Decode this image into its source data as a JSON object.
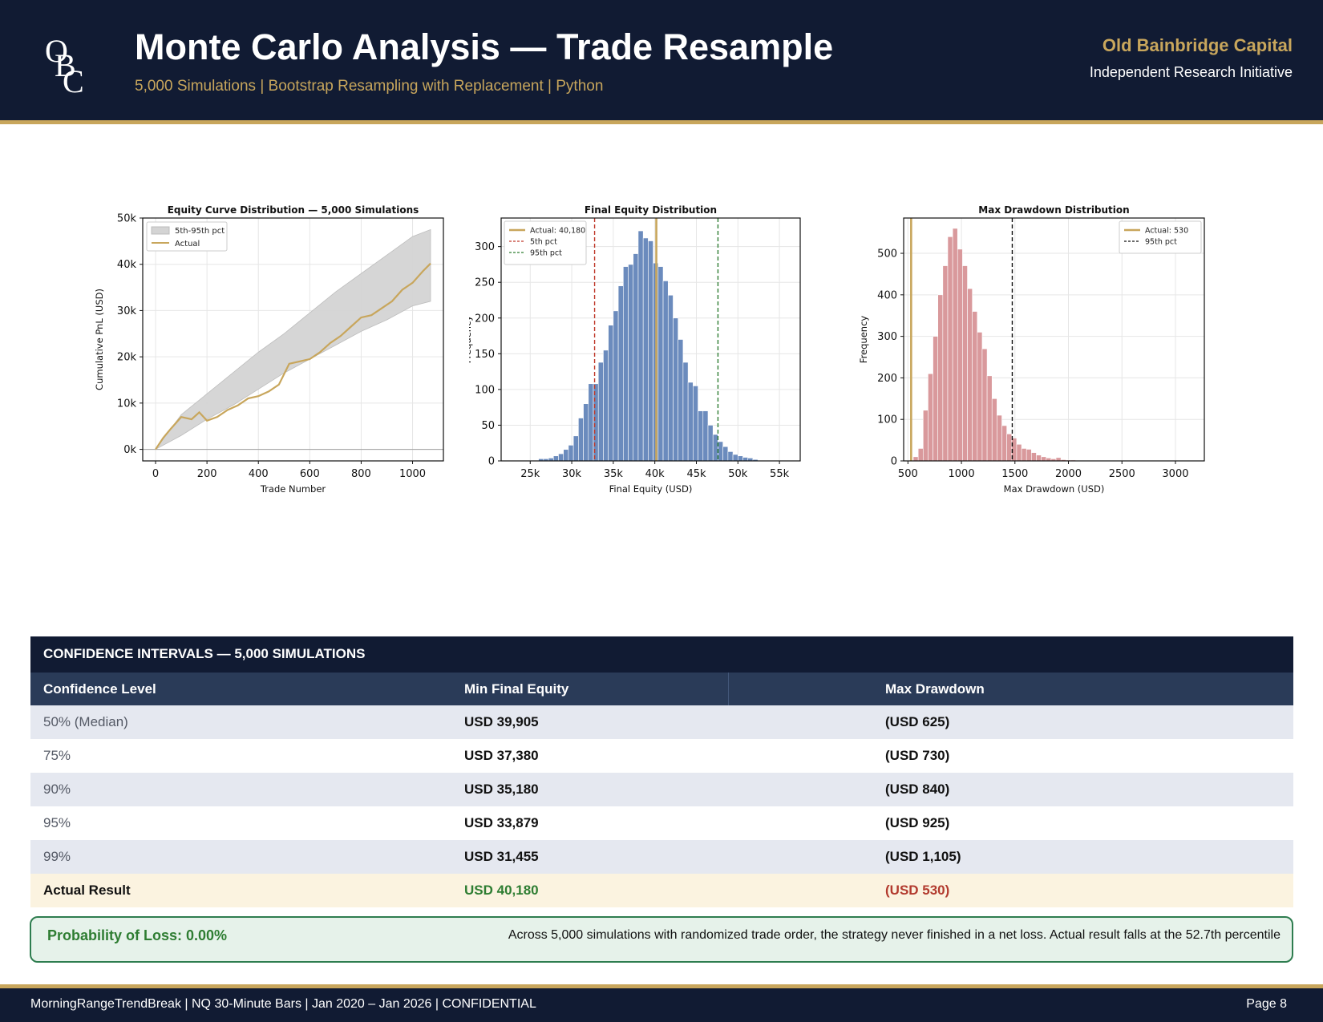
{
  "header": {
    "logo_letters": [
      "O",
      "B",
      "C"
    ],
    "title": "Monte Carlo Analysis — Trade Resample",
    "subtitle": "5,000 Simulations | Bootstrap Resampling with Replacement | Python",
    "brand": "Old Bainbridge Capital",
    "brand_sub": "Independent Research Initiative"
  },
  "colors": {
    "navy": "#111b33",
    "gold": "#c8a65c",
    "blue_bars": "#6b8bbd",
    "red_bars": "#d9999c",
    "band": "#d4d4d4",
    "green": "#2e7d32",
    "red": "#b23a2e"
  },
  "chart_data": [
    {
      "type": "area",
      "title": "Equity Curve Distribution — 5,000 Simulations",
      "xlabel": "Trade Number",
      "ylabel": "Cumulative PnL (USD)",
      "xlim": [
        -50,
        1120
      ],
      "ylim": [
        -2500,
        50000
      ],
      "xticks": [
        0,
        200,
        400,
        600,
        800,
        1000
      ],
      "xtick_labels": [
        "0",
        "200",
        "400",
        "600",
        "800",
        "1000"
      ],
      "yticks": [
        0,
        10000,
        20000,
        30000,
        40000,
        50000
      ],
      "ytick_labels": [
        "0k",
        "10k",
        "20k",
        "30k",
        "40k",
        "50k"
      ],
      "legend": [
        "5th-95th pct",
        "Actual"
      ],
      "legend_position": "upper-left",
      "band": {
        "x": [
          0,
          100,
          200,
          300,
          400,
          500,
          600,
          700,
          800,
          900,
          1000,
          1070
        ],
        "lower": [
          0,
          3000,
          6500,
          9500,
          13000,
          16500,
          19500,
          22500,
          25500,
          28000,
          31000,
          32000
        ],
        "upper": [
          0,
          7500,
          12000,
          16500,
          21000,
          25000,
          29500,
          34000,
          38000,
          42000,
          46000,
          47500
        ]
      },
      "actual": {
        "x": [
          0,
          30,
          60,
          100,
          140,
          170,
          200,
          240,
          280,
          320,
          360,
          400,
          440,
          480,
          520,
          560,
          600,
          640,
          680,
          720,
          760,
          800,
          840,
          880,
          920,
          960,
          1000,
          1040,
          1070
        ],
        "y": [
          0,
          2500,
          4500,
          7000,
          6500,
          8000,
          6200,
          7000,
          8500,
          9500,
          11000,
          11500,
          12500,
          14000,
          18500,
          19000,
          19500,
          21000,
          23000,
          24500,
          26500,
          28500,
          29000,
          30500,
          32000,
          34500,
          36000,
          38500,
          40180
        ]
      }
    },
    {
      "type": "bar",
      "title": "Final Equity Distribution",
      "xlabel": "Final Equity (USD)",
      "ylabel": "Frequency",
      "xlim": [
        21500,
        57500
      ],
      "ylim": [
        0,
        340
      ],
      "xticks": [
        25000,
        30000,
        35000,
        40000,
        45000,
        50000,
        55000
      ],
      "xtick_labels": [
        "25k",
        "30k",
        "35k",
        "40k",
        "45k",
        "50k",
        "55k"
      ],
      "yticks": [
        0,
        50,
        100,
        150,
        200,
        250,
        300
      ],
      "ytick_labels": [
        "0",
        "50",
        "100",
        "150",
        "200",
        "250",
        "300"
      ],
      "bin_start": 26000,
      "bin_width": 600,
      "values": [
        3,
        3,
        4,
        7,
        10,
        16,
        22,
        35,
        60,
        80,
        108,
        108,
        138,
        155,
        190,
        210,
        245,
        272,
        275,
        290,
        322,
        312,
        308,
        277,
        272,
        252,
        232,
        200,
        170,
        138,
        110,
        105,
        70,
        70,
        50,
        37,
        27,
        20,
        13,
        9,
        7,
        5,
        4,
        2
      ],
      "lines": [
        {
          "label": "Actual: 40,180",
          "x": 40180,
          "style": "solid",
          "color": "#c8a65c"
        },
        {
          "label": "5th pct",
          "x": 32750,
          "style": "dashed",
          "color": "#c0392b"
        },
        {
          "label": "95th pct",
          "x": 47600,
          "style": "dashed",
          "color": "#2e7d32"
        }
      ],
      "legend_position": "upper-left"
    },
    {
      "type": "bar",
      "title": "Max Drawdown Distribution",
      "xlabel": "Max Drawdown (USD)",
      "ylabel": "Frequency",
      "xlim": [
        460,
        3270
      ],
      "ylim": [
        0,
        585
      ],
      "xticks": [
        500,
        1000,
        1500,
        2000,
        2500,
        3000
      ],
      "xtick_labels": [
        "500",
        "1000",
        "1500",
        "2000",
        "2500",
        "3000"
      ],
      "yticks": [
        0,
        100,
        200,
        300,
        400,
        500
      ],
      "ytick_labels": [
        "0",
        "100",
        "200",
        "300",
        "400",
        "500"
      ],
      "bin_start": 550,
      "bin_width": 46,
      "values": [
        10,
        30,
        122,
        210,
        300,
        400,
        470,
        540,
        560,
        510,
        470,
        415,
        360,
        310,
        270,
        205,
        150,
        110,
        85,
        65,
        55,
        40,
        30,
        28,
        20,
        14,
        10,
        7,
        5,
        8,
        3,
        2,
        2,
        1,
        1,
        1,
        1,
        1
      ],
      "lines": [
        {
          "label": "Actual: 530",
          "x": 530,
          "style": "solid",
          "color": "#c8a65c"
        },
        {
          "label": "95th pct",
          "x": 1475,
          "style": "dashed",
          "color": "#111111"
        }
      ],
      "legend_position": "upper-right"
    }
  ],
  "table": {
    "title": "CONFIDENCE INTERVALS — 5,000 SIMULATIONS",
    "headers": [
      "Confidence Level",
      "Min Final Equity",
      "Max Drawdown"
    ],
    "rows": [
      [
        "50% (Median)",
        "USD 39,905",
        "(USD 625)"
      ],
      [
        "75%",
        "USD 37,380",
        "(USD 730)"
      ],
      [
        "90%",
        "USD 35,180",
        "(USD 840)"
      ],
      [
        "95%",
        "USD 33,879",
        "(USD 925)"
      ],
      [
        "99%",
        "USD 31,455",
        "(USD 1,105)"
      ]
    ],
    "actual": [
      "Actual Result",
      "USD 40,180",
      "(USD 530)"
    ]
  },
  "probability": {
    "label": "Probability of Loss: 0.00%",
    "text": "Across 5,000 simulations with randomized trade order, the strategy never finished in a net loss. Actual result falls at the 52.7th percentile"
  },
  "footer": {
    "left": "MorningRangeTrendBreak | NQ 30-Minute Bars | Jan 2020 – Jan 2026 | CONFIDENTIAL",
    "right": "Page 8"
  }
}
